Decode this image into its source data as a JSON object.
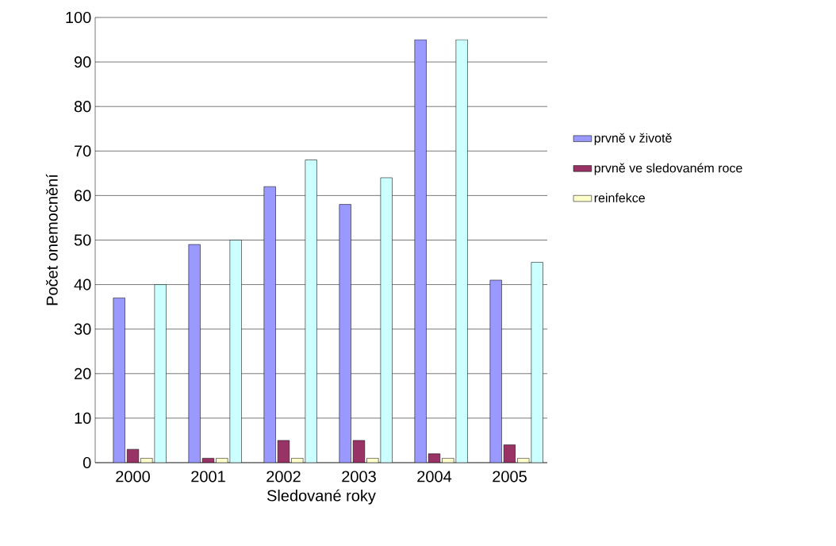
{
  "chart_data": {
    "type": "bar",
    "xlabel": "Sledované roky",
    "ylabel": "Počet onemocnění",
    "categories": [
      "2000",
      "2001",
      "2002",
      "2003",
      "2004",
      "2005"
    ],
    "series": [
      {
        "name": "prvně v životě",
        "color": "#9999ff",
        "values": [
          37,
          49,
          62,
          58,
          95,
          41
        ]
      },
      {
        "name": "prvně ve sledovaném roce",
        "color": "#993366",
        "values": [
          3,
          1,
          5,
          5,
          2,
          4
        ]
      },
      {
        "name": "reinfekce",
        "color": "#ffffcc",
        "values": [
          1,
          1,
          1,
          1,
          1,
          1
        ]
      },
      {
        "color": "#ccffff",
        "values": [
          40,
          50,
          68,
          64,
          95,
          45
        ]
      }
    ],
    "ylim": [
      0,
      100
    ],
    "yticks": [
      0,
      10,
      20,
      30,
      40,
      50,
      60,
      70,
      80,
      90,
      100
    ],
    "grid": "y",
    "legend": "right"
  }
}
